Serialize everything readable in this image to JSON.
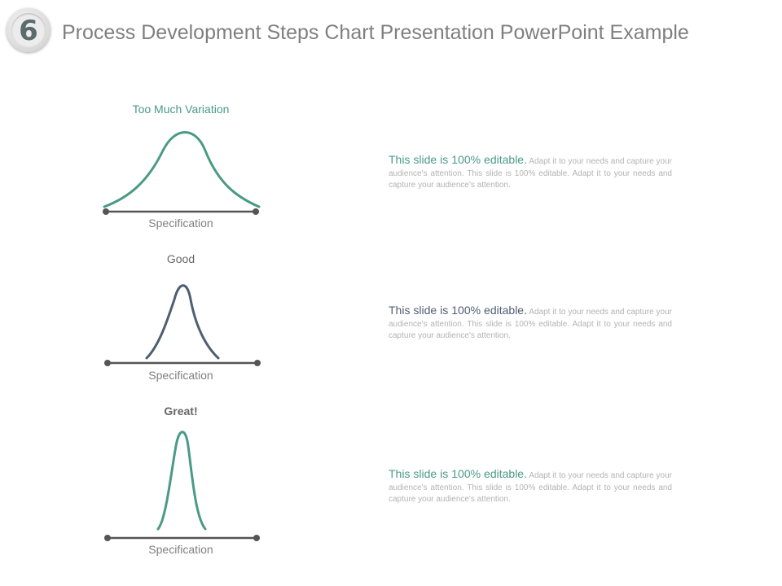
{
  "slide": {
    "number": "6",
    "title": "Process Development Steps Chart Presentation PowerPoint Example"
  },
  "colors": {
    "teal": "#4a9a86",
    "slate": "#4f5e72",
    "gray_text": "#7f7f7f",
    "light_text": "#b3b3b3",
    "axis": "#555555"
  },
  "steps": [
    {
      "label": "Too Much Variation",
      "axis_label": "Specification",
      "lead": "This slide is 100% editable.",
      "body": "Adapt it to your needs and capture your audience's attention. This slide is 100% editable. Adapt it to your needs and capture your audience's attention."
    },
    {
      "label": "Good",
      "axis_label": "Specification",
      "lead": "This slide is 100% editable.",
      "body": "Adapt it to your needs and capture your audience's attention. This slide is 100% editable. Adapt it to your needs and capture your audience's attention."
    },
    {
      "label": "Great!",
      "axis_label": "Specification",
      "lead": "This slide is 100% editable.",
      "body": "Adapt it to your needs and capture your audience's attention. This slide is 100% editable. Adapt it to your needs and capture your audience's attention."
    }
  ]
}
